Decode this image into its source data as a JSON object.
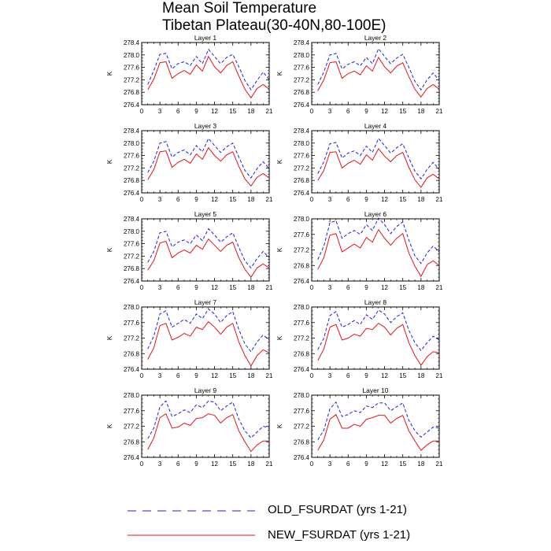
{
  "figure": {
    "title_line1": "Mean Soil Temperature",
    "title_line2": "Tibetan Plateau(30-40N,80-100E)"
  },
  "legend": {
    "old_label": "OLD_FSURDAT (yrs 1-21)",
    "new_label": "NEW_FSURDAT (yrs 1-21)",
    "old_color": "#1f1fd8",
    "new_color": "#e0141e"
  },
  "chart_data": [
    {
      "type": "line",
      "title": "Layer 1",
      "ylabel": "K",
      "xlim": [
        0,
        21
      ],
      "ylim": [
        276.4,
        278.4
      ],
      "xticks": [
        0,
        3,
        6,
        9,
        12,
        15,
        18,
        21
      ],
      "yticks": [
        276.4,
        276.8,
        277.2,
        277.6,
        278.0,
        278.4
      ],
      "x": [
        1,
        2,
        3,
        4,
        5,
        6,
        7,
        8,
        9,
        10,
        11,
        12,
        13,
        14,
        15,
        16,
        17,
        18,
        19,
        20,
        21
      ],
      "series": [
        {
          "name": "OLD_FSURDAT (yrs 1-21)",
          "style": "dashed",
          "color": "#1f1fd8",
          "values": [
            277.05,
            277.5,
            278.02,
            278.05,
            277.55,
            277.72,
            277.78,
            277.66,
            277.95,
            277.72,
            278.18,
            277.95,
            277.72,
            277.92,
            278.02,
            277.62,
            277.18,
            276.88,
            277.18,
            277.45,
            277.2
          ]
        },
        {
          "name": "NEW_FSURDAT (yrs 1-21)",
          "style": "solid",
          "color": "#e0141e",
          "values": [
            276.88,
            277.22,
            277.75,
            277.78,
            277.25,
            277.4,
            277.5,
            277.38,
            277.68,
            277.48,
            277.95,
            277.62,
            277.42,
            277.66,
            277.78,
            277.32,
            276.9,
            276.62,
            276.92,
            277.05,
            276.9
          ]
        }
      ]
    },
    {
      "type": "line",
      "title": "Layer 2",
      "ylabel": "K",
      "xlim": [
        0,
        21
      ],
      "ylim": [
        276.4,
        278.4
      ],
      "xticks": [
        0,
        3,
        6,
        9,
        12,
        15,
        18,
        21
      ],
      "yticks": [
        276.4,
        276.8,
        277.2,
        277.6,
        278.0,
        278.4
      ],
      "x": [
        1,
        2,
        3,
        4,
        5,
        6,
        7,
        8,
        9,
        10,
        11,
        12,
        13,
        14,
        15,
        16,
        17,
        18,
        19,
        20,
        21
      ],
      "series": [
        {
          "name": "OLD_FSURDAT (yrs 1-21)",
          "style": "dashed",
          "color": "#1f1fd8",
          "values": [
            277.05,
            277.45,
            278.0,
            278.05,
            277.55,
            277.7,
            277.78,
            277.65,
            277.92,
            277.72,
            278.2,
            277.95,
            277.72,
            277.9,
            278.02,
            277.6,
            277.15,
            276.88,
            277.2,
            277.42,
            277.18
          ]
        },
        {
          "name": "NEW_FSURDAT (yrs 1-21)",
          "style": "solid",
          "color": "#e0141e",
          "values": [
            276.85,
            277.2,
            277.75,
            277.78,
            277.25,
            277.4,
            277.48,
            277.36,
            277.65,
            277.48,
            277.92,
            277.62,
            277.42,
            277.64,
            277.75,
            277.3,
            276.9,
            276.65,
            276.92,
            277.05,
            276.9
          ]
        }
      ]
    },
    {
      "type": "line",
      "title": "Layer 3",
      "ylabel": "K",
      "xlim": [
        0,
        21
      ],
      "ylim": [
        276.4,
        278.4
      ],
      "xticks": [
        0,
        3,
        6,
        9,
        12,
        15,
        18,
        21
      ],
      "yticks": [
        276.4,
        276.8,
        277.2,
        277.6,
        278.0,
        278.4
      ],
      "x": [
        1,
        2,
        3,
        4,
        5,
        6,
        7,
        8,
        9,
        10,
        11,
        12,
        13,
        14,
        15,
        16,
        17,
        18,
        19,
        20,
        21
      ],
      "series": [
        {
          "name": "OLD_FSURDAT (yrs 1-21)",
          "style": "dashed",
          "color": "#1f1fd8",
          "values": [
            277.05,
            277.42,
            278.0,
            278.05,
            277.55,
            277.7,
            277.78,
            277.62,
            277.92,
            277.72,
            278.15,
            277.92,
            277.7,
            277.88,
            278.0,
            277.55,
            277.12,
            276.88,
            277.18,
            277.4,
            277.18
          ]
        },
        {
          "name": "NEW_FSURDAT (yrs 1-21)",
          "style": "solid",
          "color": "#e0141e",
          "values": [
            276.82,
            277.15,
            277.72,
            277.75,
            277.22,
            277.38,
            277.48,
            277.35,
            277.65,
            277.48,
            277.85,
            277.6,
            277.42,
            277.62,
            277.72,
            277.25,
            276.85,
            276.62,
            276.9,
            277.02,
            276.88
          ]
        }
      ]
    },
    {
      "type": "line",
      "title": "Layer 4",
      "ylabel": "K",
      "xlim": [
        0,
        21
      ],
      "ylim": [
        276.4,
        278.4
      ],
      "xticks": [
        0,
        3,
        6,
        9,
        12,
        15,
        18,
        21
      ],
      "yticks": [
        276.4,
        276.8,
        277.2,
        277.6,
        278.0,
        278.4
      ],
      "x": [
        1,
        2,
        3,
        4,
        5,
        6,
        7,
        8,
        9,
        10,
        11,
        12,
        13,
        14,
        15,
        16,
        17,
        18,
        19,
        20,
        21
      ],
      "series": [
        {
          "name": "OLD_FSURDAT (yrs 1-21)",
          "style": "dashed",
          "color": "#1f1fd8",
          "values": [
            277.02,
            277.4,
            277.98,
            278.02,
            277.52,
            277.68,
            277.75,
            277.6,
            277.9,
            277.7,
            278.15,
            277.92,
            277.68,
            277.85,
            277.98,
            277.52,
            277.1,
            276.85,
            277.15,
            277.38,
            277.15
          ]
        },
        {
          "name": "NEW_FSURDAT (yrs 1-21)",
          "style": "solid",
          "color": "#e0141e",
          "values": [
            276.8,
            277.12,
            277.7,
            277.72,
            277.2,
            277.35,
            277.45,
            277.32,
            277.62,
            277.45,
            277.82,
            277.58,
            277.4,
            277.6,
            277.7,
            277.22,
            276.82,
            276.58,
            276.88,
            277.0,
            276.85
          ]
        }
      ]
    },
    {
      "type": "line",
      "title": "Layer 5",
      "ylabel": "K",
      "xlim": [
        0,
        21
      ],
      "ylim": [
        276.4,
        278.4
      ],
      "xticks": [
        0,
        3,
        6,
        9,
        12,
        15,
        18,
        21
      ],
      "yticks": [
        276.4,
        276.8,
        277.2,
        277.6,
        278.0,
        278.4
      ],
      "x": [
        1,
        2,
        3,
        4,
        5,
        6,
        7,
        8,
        9,
        10,
        11,
        12,
        13,
        14,
        15,
        16,
        17,
        18,
        19,
        20,
        21
      ],
      "series": [
        {
          "name": "OLD_FSURDAT (yrs 1-21)",
          "style": "dashed",
          "color": "#1f1fd8",
          "values": [
            277.0,
            277.35,
            277.95,
            278.0,
            277.5,
            277.65,
            277.72,
            277.6,
            277.88,
            277.7,
            278.08,
            277.88,
            277.65,
            277.82,
            277.95,
            277.48,
            277.05,
            276.82,
            277.12,
            277.35,
            277.15
          ]
        },
        {
          "name": "NEW_FSURDAT (yrs 1-21)",
          "style": "solid",
          "color": "#e0141e",
          "values": [
            276.75,
            277.05,
            277.62,
            277.68,
            277.15,
            277.3,
            277.4,
            277.3,
            277.55,
            277.42,
            277.75,
            277.55,
            277.35,
            277.55,
            277.65,
            277.15,
            276.78,
            276.52,
            276.82,
            276.95,
            276.82
          ]
        }
      ]
    },
    {
      "type": "line",
      "title": "Layer 6",
      "ylabel": "K",
      "xlim": [
        0,
        21
      ],
      "ylim": [
        276.4,
        278.0
      ],
      "xticks": [
        0,
        3,
        6,
        9,
        12,
        15,
        18,
        21
      ],
      "yticks": [
        276.4,
        276.8,
        277.2,
        277.6,
        278.0
      ],
      "x": [
        1,
        2,
        3,
        4,
        5,
        6,
        7,
        8,
        9,
        10,
        11,
        12,
        13,
        14,
        15,
        16,
        17,
        18,
        19,
        20,
        21
      ],
      "series": [
        {
          "name": "OLD_FSURDAT (yrs 1-21)",
          "style": "dashed",
          "color": "#1f1fd8",
          "values": [
            276.95,
            277.3,
            277.9,
            277.95,
            277.5,
            277.62,
            277.7,
            277.6,
            277.85,
            277.7,
            278.02,
            277.85,
            277.62,
            277.8,
            277.92,
            277.45,
            277.05,
            276.85,
            277.12,
            277.3,
            277.15
          ]
        },
        {
          "name": "NEW_FSURDAT (yrs 1-21)",
          "style": "solid",
          "color": "#e0141e",
          "values": [
            276.7,
            277.0,
            277.58,
            277.62,
            277.15,
            277.25,
            277.35,
            277.25,
            277.52,
            277.4,
            277.72,
            277.5,
            277.32,
            277.5,
            277.62,
            277.12,
            276.78,
            276.52,
            276.82,
            276.92,
            276.8
          ]
        }
      ]
    },
    {
      "type": "line",
      "title": "Layer 7",
      "ylabel": "K",
      "xlim": [
        0,
        21
      ],
      "ylim": [
        276.4,
        278.0
      ],
      "xticks": [
        0,
        3,
        6,
        9,
        12,
        15,
        18,
        21
      ],
      "yticks": [
        276.4,
        276.8,
        277.2,
        277.6,
        278.0
      ],
      "x": [
        1,
        2,
        3,
        4,
        5,
        6,
        7,
        8,
        9,
        10,
        11,
        12,
        13,
        14,
        15,
        16,
        17,
        18,
        19,
        20,
        21
      ],
      "series": [
        {
          "name": "OLD_FSURDAT (yrs 1-21)",
          "style": "dashed",
          "color": "#1f1fd8",
          "values": [
            276.92,
            277.25,
            277.82,
            277.9,
            277.48,
            277.58,
            277.68,
            277.58,
            277.82,
            277.7,
            277.95,
            277.82,
            277.6,
            277.78,
            277.88,
            277.42,
            277.05,
            276.85,
            277.1,
            277.28,
            277.15
          ]
        },
        {
          "name": "NEW_FSURDAT (yrs 1-21)",
          "style": "solid",
          "color": "#e0141e",
          "values": [
            276.65,
            276.95,
            277.52,
            277.58,
            277.15,
            277.22,
            277.32,
            277.25,
            277.48,
            277.42,
            277.62,
            277.48,
            277.3,
            277.48,
            277.58,
            277.1,
            276.75,
            276.48,
            276.75,
            276.9,
            276.82
          ]
        }
      ]
    },
    {
      "type": "line",
      "title": "Layer 8",
      "ylabel": "K",
      "xlim": [
        0,
        21
      ],
      "ylim": [
        276.4,
        278.0
      ],
      "xticks": [
        0,
        3,
        6,
        9,
        12,
        15,
        18,
        21
      ],
      "yticks": [
        276.4,
        276.8,
        277.2,
        277.6,
        278.0
      ],
      "x": [
        1,
        2,
        3,
        4,
        5,
        6,
        7,
        8,
        9,
        10,
        11,
        12,
        13,
        14,
        15,
        16,
        17,
        18,
        19,
        20,
        21
      ],
      "series": [
        {
          "name": "OLD_FSURDAT (yrs 1-21)",
          "style": "dashed",
          "color": "#1f1fd8",
          "values": [
            276.9,
            277.2,
            277.78,
            277.88,
            277.48,
            277.55,
            277.65,
            277.55,
            277.8,
            277.68,
            277.92,
            277.82,
            277.6,
            277.75,
            277.85,
            277.4,
            277.08,
            276.88,
            277.08,
            277.25,
            277.15
          ]
        },
        {
          "name": "NEW_FSURDAT (yrs 1-21)",
          "style": "solid",
          "color": "#e0141e",
          "values": [
            276.62,
            276.92,
            277.48,
            277.55,
            277.15,
            277.2,
            277.3,
            277.25,
            277.45,
            277.42,
            277.58,
            277.48,
            277.28,
            277.45,
            277.55,
            277.08,
            276.75,
            276.5,
            276.72,
            276.85,
            276.82
          ]
        }
      ]
    },
    {
      "type": "line",
      "title": "Layer 9",
      "ylabel": "K",
      "xlim": [
        0,
        21
      ],
      "ylim": [
        276.4,
        278.0
      ],
      "xticks": [
        0,
        3,
        6,
        9,
        12,
        15,
        18,
        21
      ],
      "yticks": [
        276.4,
        276.8,
        277.2,
        277.6,
        278.0
      ],
      "x": [
        1,
        2,
        3,
        4,
        5,
        6,
        7,
        8,
        9,
        10,
        11,
        12,
        13,
        14,
        15,
        16,
        17,
        18,
        19,
        20,
        21
      ],
      "series": [
        {
          "name": "OLD_FSURDAT (yrs 1-21)",
          "style": "dashed",
          "color": "#1f1fd8",
          "values": [
            276.88,
            277.15,
            277.7,
            277.85,
            277.45,
            277.52,
            277.62,
            277.55,
            277.75,
            277.68,
            277.85,
            277.82,
            277.6,
            277.72,
            277.82,
            277.38,
            277.08,
            276.9,
            277.05,
            277.2,
            277.15
          ]
        },
        {
          "name": "NEW_FSURDAT (yrs 1-21)",
          "style": "solid",
          "color": "#e0141e",
          "values": [
            276.6,
            276.9,
            277.42,
            277.52,
            277.15,
            277.18,
            277.28,
            277.22,
            277.4,
            277.42,
            277.52,
            277.48,
            277.28,
            277.42,
            277.5,
            277.08,
            276.8,
            276.55,
            276.72,
            276.82,
            276.82
          ]
        }
      ]
    },
    {
      "type": "line",
      "title": "Layer 10",
      "ylabel": "K",
      "xlim": [
        0,
        21
      ],
      "ylim": [
        276.4,
        278.0
      ],
      "xticks": [
        0,
        3,
        6,
        9,
        12,
        15,
        18,
        21
      ],
      "yticks": [
        276.4,
        276.8,
        277.2,
        277.6,
        278.0
      ],
      "x": [
        1,
        2,
        3,
        4,
        5,
        6,
        7,
        8,
        9,
        10,
        11,
        12,
        13,
        14,
        15,
        16,
        17,
        18,
        19,
        20,
        21
      ],
      "series": [
        {
          "name": "OLD_FSURDAT (yrs 1-21)",
          "style": "dashed",
          "color": "#1f1fd8",
          "values": [
            276.85,
            277.1,
            277.65,
            277.82,
            277.45,
            277.5,
            277.6,
            277.55,
            277.72,
            277.68,
            277.8,
            277.8,
            277.6,
            277.7,
            277.8,
            277.35,
            277.08,
            276.92,
            277.05,
            277.18,
            277.15
          ]
        },
        {
          "name": "NEW_FSURDAT (yrs 1-21)",
          "style": "solid",
          "color": "#e0141e",
          "values": [
            276.58,
            276.85,
            277.38,
            277.5,
            277.15,
            277.15,
            277.25,
            277.2,
            277.38,
            277.42,
            277.48,
            277.48,
            277.28,
            277.4,
            277.48,
            277.08,
            276.82,
            276.58,
            276.72,
            276.82,
            276.82
          ]
        }
      ]
    }
  ]
}
